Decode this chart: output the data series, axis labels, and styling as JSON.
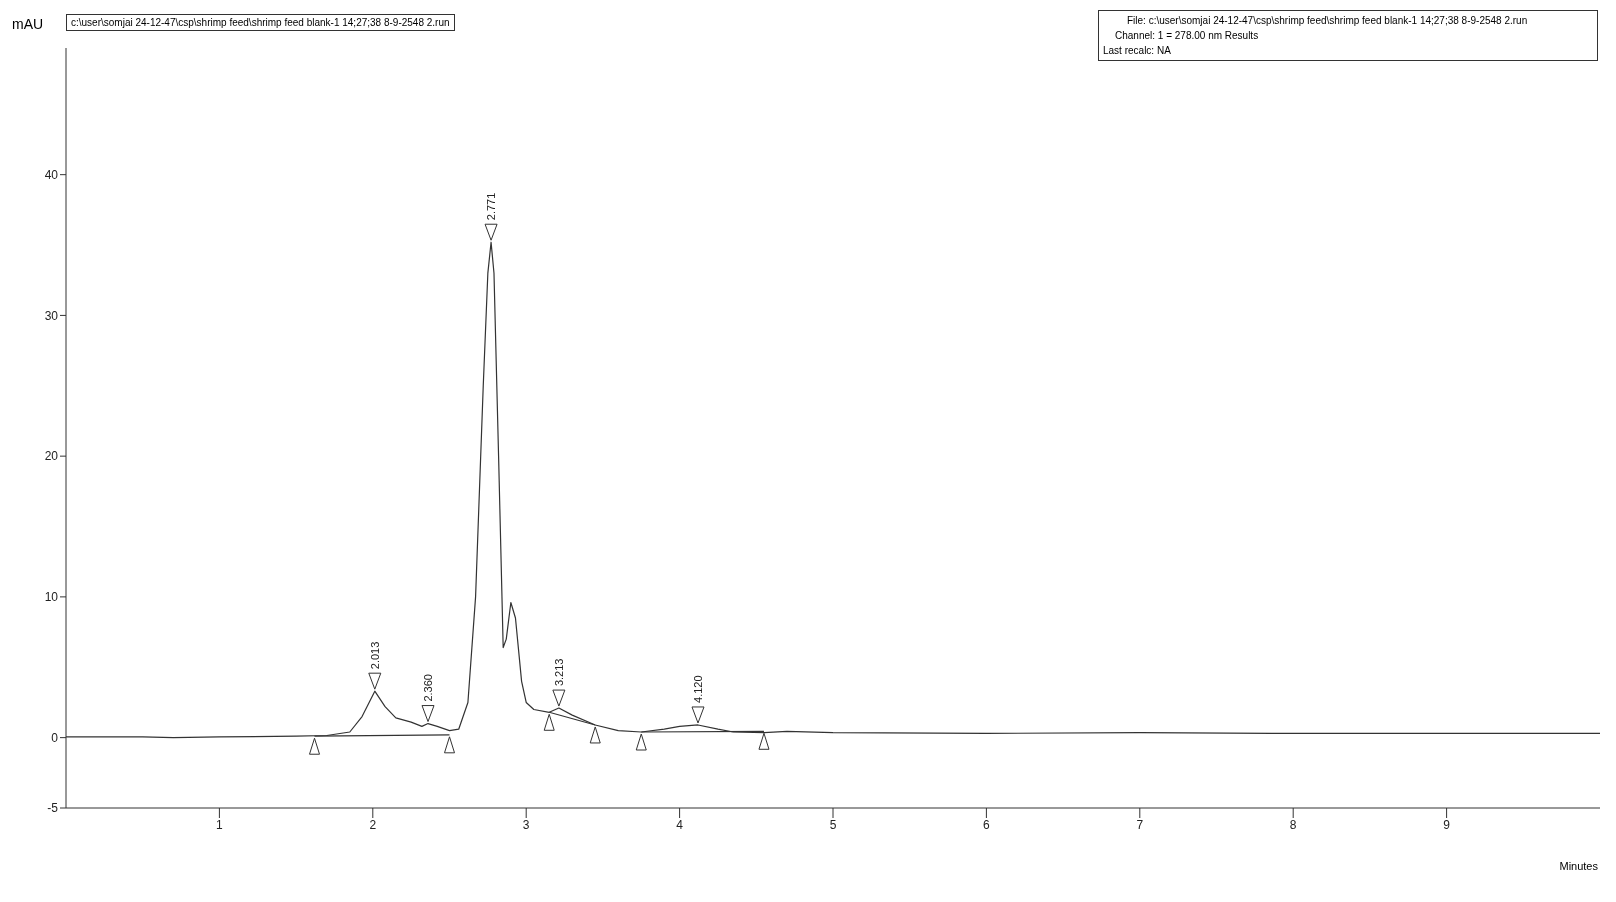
{
  "chart_data": {
    "type": "line",
    "title": "c:\\user\\somjai 24-12-47\\csp\\shrimp feed\\shrimp feed blank-1 14;27;38 8-9-2548 2.run",
    "xlabel": "Minutes",
    "ylabel": "mAU",
    "annotations": [
      "File: c:\\user\\somjai 24-12-47\\csp\\shrimp feed\\shrimp feed blank-1 14;27;38 8-9-2548 2.run",
      "Channel: 1 = 278.00 nm Results",
      "Last recalc: NA",
      {
        "text": "2.013",
        "x": 2.013,
        "y": 3.3
      },
      {
        "text": "2.360",
        "x": 2.36,
        "y": 1.0
      },
      {
        "text": "2.771",
        "x": 2.771,
        "y": 35.2
      },
      {
        "text": "3.213",
        "x": 3.213,
        "y": 2.1
      },
      {
        "text": "4.120",
        "x": 4.12,
        "y": 0.9
      }
    ],
    "series": [
      {
        "color": "#333333",
        "x": [
          0,
          0.5,
          0.7,
          1.0,
          1.5,
          1.7,
          1.85,
          1.93,
          2.013,
          2.08,
          2.15,
          2.25,
          2.32,
          2.36,
          2.42,
          2.5,
          2.56,
          2.62,
          2.67,
          2.72,
          2.75,
          2.771,
          2.79,
          2.82,
          2.85,
          2.87,
          2.9,
          2.93,
          2.97,
          3.0,
          3.05,
          3.15,
          3.213,
          3.3,
          3.45,
          3.6,
          3.75,
          3.9,
          4.0,
          4.12,
          4.25,
          4.35,
          4.55,
          4.7,
          5,
          6,
          7,
          8,
          9,
          10
        ],
        "values": [
          0.05,
          0.05,
          0.0,
          0.05,
          0.1,
          0.15,
          0.4,
          1.5,
          3.3,
          2.2,
          1.4,
          1.1,
          0.8,
          1.0,
          0.8,
          0.5,
          0.6,
          2.5,
          10,
          25,
          33,
          35.2,
          33,
          20,
          6.4,
          7,
          9.6,
          8.5,
          4,
          2.5,
          2.0,
          1.8,
          2.1,
          1.6,
          0.9,
          0.5,
          0.4,
          0.6,
          0.8,
          0.9,
          0.6,
          0.4,
          0.35,
          0.45,
          0.35,
          0.3,
          0.35,
          0.3,
          0.3,
          0.3
        ]
      },
      {
        "color": "#333333",
        "x": [
          1.62,
          2.5,
          2.51,
          3.15,
          3.45,
          3.46,
          3.75,
          4.55
        ],
        "values": [
          0.1,
          0.2,
          null,
          1.8,
          0.9,
          null,
          0.4,
          0.45
        ]
      }
    ],
    "xlim": [
      0,
      10
    ],
    "xticks": [
      1,
      2,
      3,
      4,
      5,
      6,
      7,
      8,
      9
    ],
    "ylim": [
      -5,
      49
    ],
    "yticks": [
      -5,
      0,
      10,
      20,
      30,
      40
    ],
    "grid": false,
    "legend": false,
    "marker": "none",
    "line_style": "solid"
  }
}
